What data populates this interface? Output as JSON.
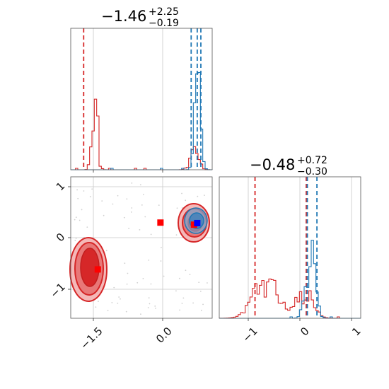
{
  "colors": {
    "red": "#d62728",
    "blue": "#1f77b4",
    "marker_blue": "#0000ff",
    "marker_red": "#ff0000"
  },
  "chart_data": [
    {
      "type": "histogram",
      "panel": "top-left",
      "title": {
        "main": "−1.46",
        "sup": "+2.25",
        "sub": "−0.19"
      },
      "xlim": [
        -2.2,
        1.3
      ],
      "x_ticks": [
        -1.5,
        0.0
      ],
      "series": [
        {
          "name": "",
          "color": "red",
          "peaks": [
            {
              "center": -1.62,
              "height": 0.36,
              "width": 0.06
            },
            {
              "center": -1.55,
              "height": 0.3,
              "width": 0.05
            },
            {
              "center": 0.85,
              "height": 0.14,
              "width": 0.1
            }
          ],
          "quantiles": [
            -1.88
          ]
        },
        {
          "name": "",
          "color": "blue",
          "peaks": [
            {
              "center": 0.94,
              "height": 0.76,
              "width": 0.07
            }
          ],
          "quantiles": [
            0.78,
            0.93,
            1.02
          ]
        }
      ]
    },
    {
      "type": "histogram",
      "panel": "bottom-right",
      "title": {
        "main": "−0.48",
        "sup": "+0.72",
        "sub": "−0.30"
      },
      "xlim": [
        -1.45,
        1.2
      ],
      "x_ticks": [
        -1,
        0,
        1
      ],
      "series": [
        {
          "name": "",
          "color": "red",
          "peaks": [
            {
              "center": -0.58,
              "height": 0.27,
              "width": 0.22
            },
            {
              "center": 0.15,
              "height": 0.18,
              "width": 0.15
            }
          ],
          "quantiles": [
            -0.78,
            0.18
          ]
        },
        {
          "name": "",
          "color": "blue",
          "peaks": [
            {
              "center": 0.26,
              "height": 0.75,
              "width": 0.08
            }
          ],
          "quantiles": [
            0.2,
            0.38
          ]
        }
      ]
    },
    {
      "type": "contour",
      "panel": "bottom-left",
      "xlim": [
        -2.2,
        1.3
      ],
      "ylim": [
        -1.55,
        1.2
      ],
      "x_ticks": [
        -1.5,
        0.0
      ],
      "y_ticks": [
        -1,
        0,
        1
      ],
      "points": [
        {
          "color": "marker_red",
          "x": -1.53,
          "y": -0.6
        },
        {
          "color": "marker_red",
          "x": 0.02,
          "y": 0.31
        },
        {
          "color": "marker_red",
          "x": 0.85,
          "y": 0.27
        },
        {
          "color": "marker_blue",
          "x": 0.93,
          "y": 0.3
        }
      ]
    }
  ]
}
